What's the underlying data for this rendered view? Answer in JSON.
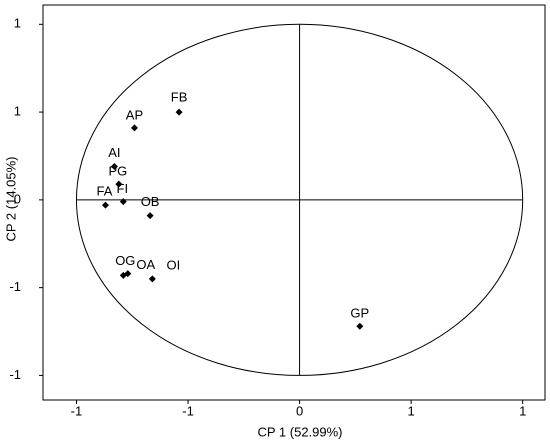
{
  "chart_data": {
    "type": "scatter",
    "x_label": "CP 1 (52.99%)",
    "y_label": "CP 2 (14.05%)",
    "labels": [
      "FB",
      "AP",
      "AI",
      "PG",
      "FA",
      "FI",
      "OB",
      "OG",
      "OA",
      "OI",
      "GP"
    ],
    "x": [
      -0.54,
      -0.74,
      -0.83,
      -0.81,
      -0.87,
      -0.79,
      -0.67,
      -0.79,
      -0.77,
      -0.66,
      0.27
    ],
    "values": [
      0.5,
      0.41,
      0.19,
      0.09,
      -0.03,
      -0.01,
      -0.09,
      -0.43,
      -0.42,
      -0.45,
      -0.72
    ],
    "color": "#000000",
    "xlim": [
      -1.15,
      1.1
    ],
    "ylim": [
      -1.14,
      1.11
    ],
    "xticks": [
      {
        "value": -1,
        "label": "-1"
      },
      {
        "value": -0.5,
        "label": "-1"
      },
      0,
      {
        "value": 0.5,
        "label": "1"
      },
      1
    ],
    "yticks": [
      {
        "value": -1,
        "label": "-1"
      },
      {
        "value": -0.5,
        "label": "-1"
      },
      0,
      {
        "value": 0.5,
        "label": "1"
      },
      1
    ]
  }
}
